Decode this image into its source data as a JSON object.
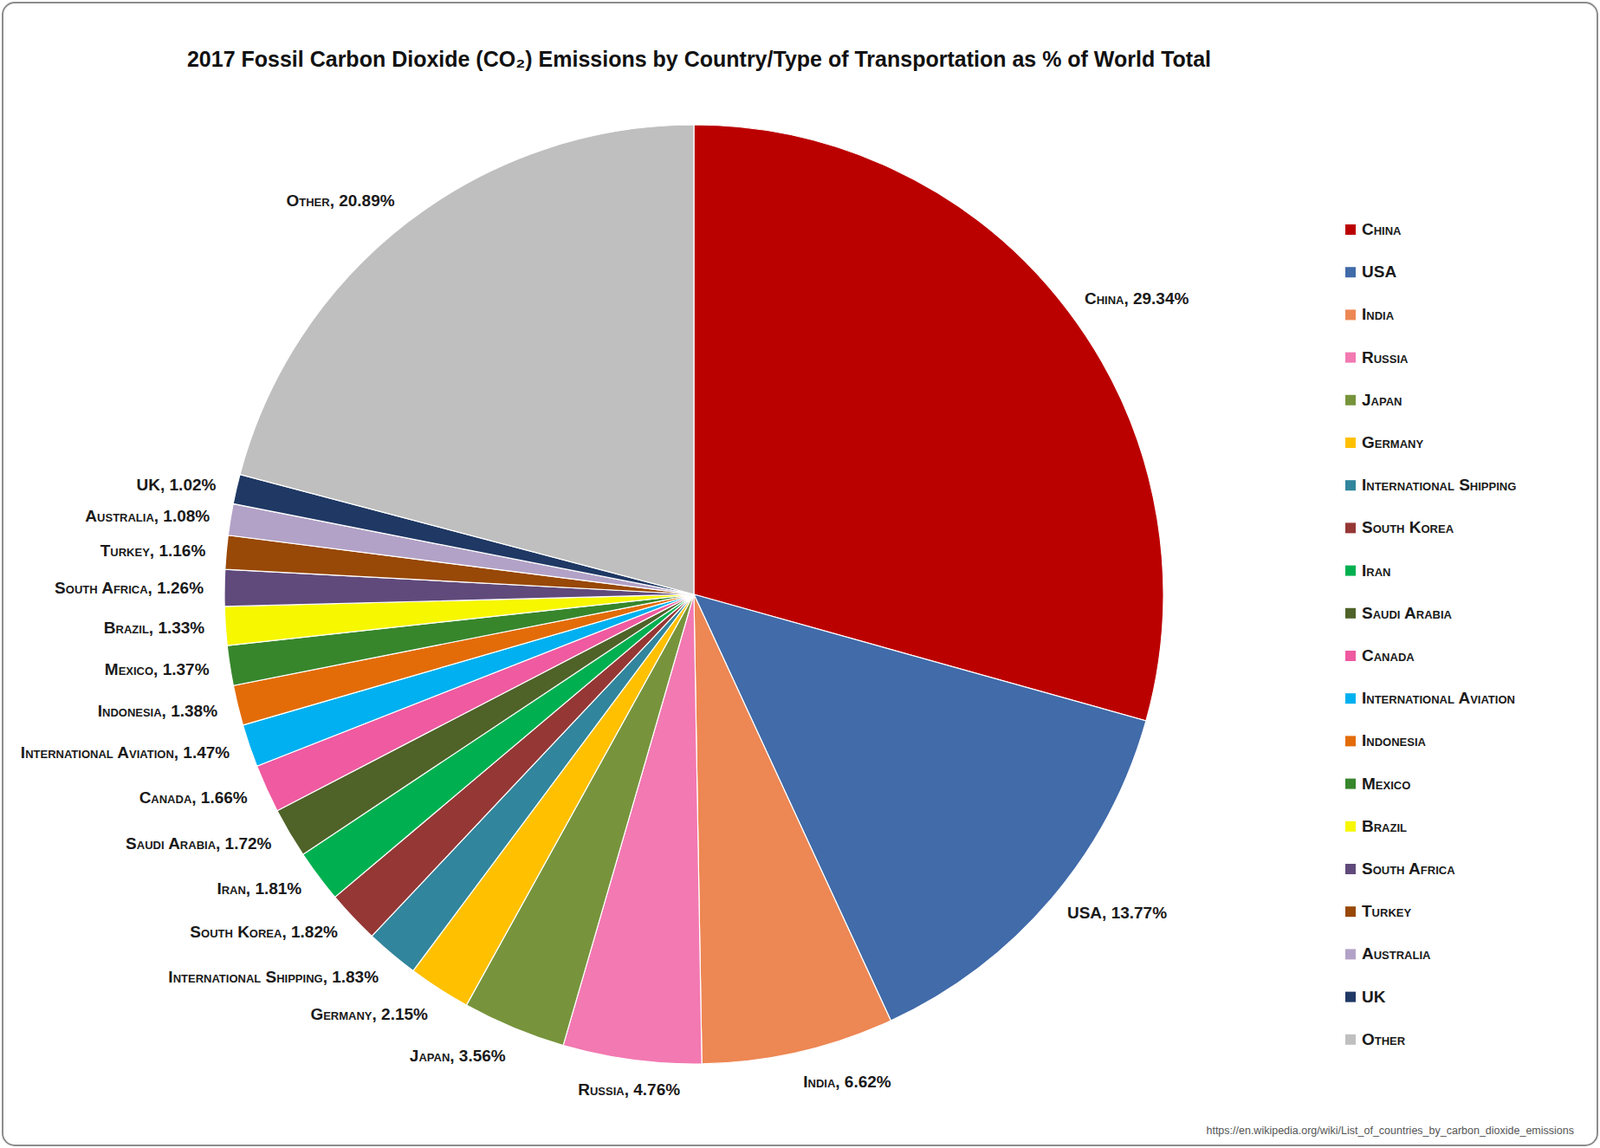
{
  "chart_data": {
    "type": "pie",
    "title": "2017 Fossil Carbon Dioxide (CO₂) Emissions by Country/Type of Transportation as % of World Total",
    "categories": [
      "China",
      "USA",
      "India",
      "Russia",
      "Japan",
      "Germany",
      "International Shipping",
      "South Korea",
      "Iran",
      "Saudi Arabia",
      "Canada",
      "International Aviation",
      "Indonesia",
      "Mexico",
      "Brazil",
      "South Africa",
      "Turkey",
      "Australia",
      "UK",
      "Other"
    ],
    "values": [
      29.34,
      13.77,
      6.62,
      4.76,
      3.56,
      2.15,
      1.83,
      1.82,
      1.81,
      1.72,
      1.66,
      1.47,
      1.38,
      1.37,
      1.33,
      1.26,
      1.16,
      1.08,
      1.02,
      20.89
    ],
    "value_labels": [
      "China, 29.34%",
      "USA, 13.77%",
      "India, 6.62%",
      "Russia, 4.76%",
      "Japan, 3.56%",
      "Germany, 2.15%",
      "International Shipping, 1.83%",
      "South Korea, 1.82%",
      "Iran, 1.81%",
      "Saudi Arabia, 1.72%",
      "Canada, 1.66%",
      "International Aviation, 1.47%",
      "Indonesia, 1.38%",
      "Mexico, 1.37%",
      "Brazil, 1.33%",
      "South Africa, 1.26%",
      "Turkey, 1.16%",
      "Australia, 1.08%",
      "UK, 1.02%",
      "Other, 20.89%"
    ],
    "colors": [
      "#bb0000",
      "#416ba9",
      "#ed8754",
      "#f279b1",
      "#77943c",
      "#ffc000",
      "#31859c",
      "#953735",
      "#00b050",
      "#4f6228",
      "#ef5aa0",
      "#00b0f0",
      "#e36c09",
      "#37862c",
      "#f7f700",
      "#604a7b",
      "#984807",
      "#b3a2c7",
      "#1f3864",
      "#bfbfbf"
    ],
    "data_labels": true,
    "legend": "right",
    "annotations": [
      "https://en.wikipedia.org/wiki/List_of_countries_by_carbon_dioxide_emissions"
    ]
  }
}
